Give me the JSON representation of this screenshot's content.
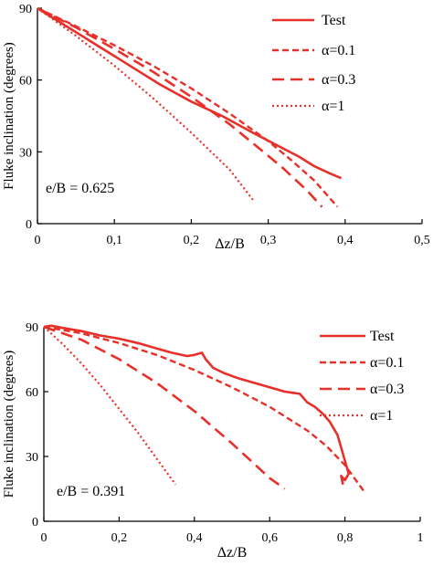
{
  "chart_data": [
    {
      "type": "line",
      "xlabel": "Δz/B",
      "ylabel": "Fluke inclination (degrees)",
      "xlim": [
        0,
        0.5
      ],
      "ylim": [
        0,
        90
      ],
      "xticks": [
        "0",
        "0,1",
        "0,2",
        "0,3",
        "0,4",
        "0,5"
      ],
      "yticks": [
        "0",
        "30",
        "60",
        "90"
      ],
      "annotation": "e/B = 0.625",
      "legend_position": "top-right",
      "colors": {
        "line": "#e8302a",
        "axis": "#000000"
      },
      "series": [
        {
          "name": "Test",
          "style": "solid",
          "x": [
            0,
            0.02,
            0.05,
            0.08,
            0.1,
            0.13,
            0.16,
            0.2,
            0.24,
            0.28,
            0.31,
            0.34,
            0.36,
            0.38,
            0.395
          ],
          "y": [
            90,
            86,
            80,
            74,
            70,
            64,
            58,
            51,
            45,
            38,
            33,
            28,
            24,
            21,
            19
          ]
        },
        {
          "name": "α=0.1",
          "style": "dashed",
          "x": [
            0,
            0.05,
            0.1,
            0.15,
            0.2,
            0.25,
            0.3,
            0.33,
            0.36,
            0.39
          ],
          "y": [
            90,
            82.5,
            74.5,
            66,
            56.5,
            46,
            34.5,
            26.5,
            18,
            7
          ]
        },
        {
          "name": "α=0.3",
          "style": "longdash",
          "x": [
            0,
            0.05,
            0.1,
            0.15,
            0.2,
            0.25,
            0.29,
            0.32,
            0.35,
            0.37
          ],
          "y": [
            90,
            82,
            73,
            63.5,
            53,
            41.5,
            31,
            23,
            14,
            7
          ]
        },
        {
          "name": "α=1",
          "style": "dotted",
          "x": [
            0,
            0.05,
            0.1,
            0.15,
            0.2,
            0.25,
            0.28
          ],
          "y": [
            90,
            78.5,
            66,
            52.5,
            38,
            22.5,
            10
          ]
        }
      ]
    },
    {
      "type": "line",
      "xlabel": "Δz/B",
      "ylabel": "Fluke inclination (degrees)",
      "xlim": [
        0,
        1
      ],
      "ylim": [
        0,
        90
      ],
      "xticks": [
        "0",
        "0,2",
        "0,4",
        "0,6",
        "0,8",
        "1"
      ],
      "yticks": [
        "0",
        "30",
        "60",
        "90"
      ],
      "annotation": "e/B = 0.391",
      "legend_position": "top-right",
      "colors": {
        "line": "#e8302a",
        "axis": "#000000"
      },
      "series": [
        {
          "name": "Test",
          "style": "solid",
          "x": [
            0,
            0.02,
            0.05,
            0.1,
            0.15,
            0.2,
            0.25,
            0.3,
            0.34,
            0.38,
            0.4,
            0.42,
            0.43,
            0.45,
            0.48,
            0.52,
            0.56,
            0.6,
            0.64,
            0.66,
            0.68,
            0.7,
            0.72,
            0.74,
            0.76,
            0.77,
            0.78,
            0.79,
            0.8,
            0.81,
            0.8,
            0.79,
            0.795
          ],
          "y": [
            90,
            90.5,
            89.5,
            88,
            86,
            84.5,
            82.5,
            80,
            78,
            76.5,
            77,
            78,
            75,
            71,
            68.5,
            66,
            64,
            62,
            60,
            59.5,
            59,
            55,
            53,
            50,
            46,
            43,
            40,
            34,
            28,
            22,
            19,
            21,
            17
          ]
        },
        {
          "name": "α=0.1",
          "style": "dashed",
          "x": [
            0,
            0.1,
            0.2,
            0.3,
            0.4,
            0.5,
            0.6,
            0.7,
            0.75,
            0.8,
            0.85
          ],
          "y": [
            90,
            87,
            82.5,
            77,
            70,
            62,
            53,
            42,
            35,
            26,
            14
          ]
        },
        {
          "name": "α=0.3",
          "style": "longdash",
          "x": [
            0,
            0.1,
            0.2,
            0.3,
            0.4,
            0.5,
            0.55,
            0.6,
            0.64
          ],
          "y": [
            90,
            84,
            75,
            64,
            51,
            36,
            28,
            20,
            15
          ]
        },
        {
          "name": "α=1",
          "style": "dotted",
          "x": [
            0,
            0.05,
            0.1,
            0.15,
            0.2,
            0.25,
            0.3,
            0.35
          ],
          "y": [
            90,
            82,
            73,
            63,
            52,
            41,
            29,
            17
          ]
        }
      ]
    }
  ]
}
